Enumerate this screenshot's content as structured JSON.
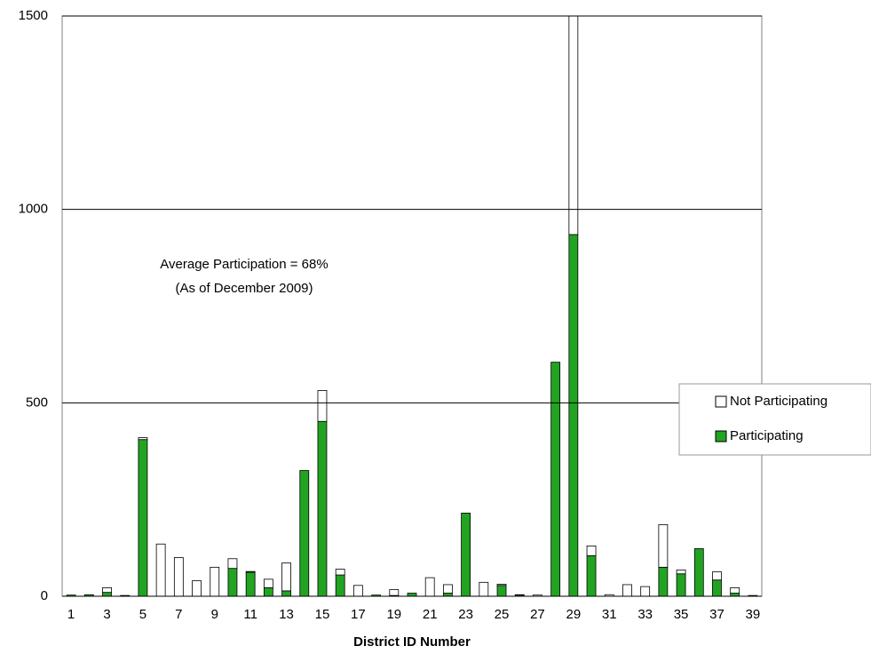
{
  "chart_data": {
    "type": "stacked_bar",
    "xlabel": "District ID Number",
    "annotations": [
      "Average Participation = 68%",
      "(As of December 2009)"
    ],
    "categories": [
      "1",
      null,
      "3",
      null,
      "5",
      null,
      "7",
      null,
      "9",
      null,
      "11",
      null,
      "13",
      null,
      "15",
      null,
      "17",
      null,
      "19",
      null,
      "21",
      null,
      "23",
      null,
      "25",
      null,
      "27",
      null,
      "29",
      null,
      "31",
      null,
      "33",
      null,
      "35",
      null,
      "37",
      null,
      "39"
    ],
    "series": [
      {
        "name": "Participating",
        "color": "#22a322",
        "values": [
          3,
          4,
          10,
          2,
          405,
          0,
          0,
          0,
          0,
          72,
          62,
          22,
          14,
          325,
          452,
          55,
          0,
          3,
          2,
          8,
          0,
          8,
          215,
          0,
          28,
          3,
          0,
          605,
          935,
          105,
          0,
          0,
          0,
          75,
          58,
          123,
          42,
          8,
          2
        ]
      },
      {
        "name": "Not Participating",
        "color": "#ffffff",
        "values": [
          0,
          0,
          12,
          0,
          5,
          135,
          100,
          40,
          75,
          25,
          2,
          22,
          72,
          0,
          80,
          15,
          28,
          0,
          15,
          0,
          48,
          22,
          0,
          36,
          3,
          1,
          3,
          0,
          565,
          25,
          4,
          30,
          25,
          110,
          10,
          0,
          21,
          14,
          0
        ]
      }
    ],
    "ylim": [
      0,
      1500
    ],
    "yticks": [
      0,
      500,
      1000,
      1500
    ],
    "grid": true,
    "legend": "right"
  }
}
